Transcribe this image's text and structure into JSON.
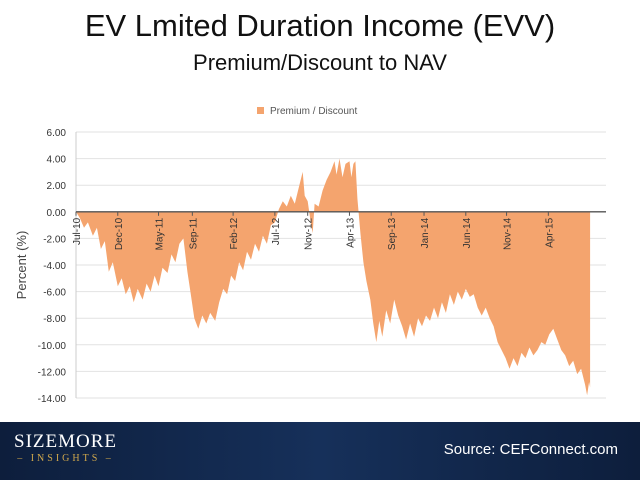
{
  "slide": {
    "title": "EV Lmited Duration Income (EVV)",
    "subtitle": "Premium/Discount to NAV",
    "logo_main": "SIZEMORE",
    "logo_sub": "– INSIGHTS –",
    "source": "Source: CEFConnect.com"
  },
  "chart_data": {
    "type": "area",
    "ylabel": "Percent (%)",
    "ylim": [
      -14,
      6
    ],
    "yticks": [
      6,
      4,
      2,
      0,
      -2,
      -4,
      -6,
      -8,
      -10,
      -12,
      -14
    ],
    "ytick_labels": [
      "6.00",
      "4.00",
      "2.00",
      "0.00",
      "-2.00",
      "-4.00",
      "-6.00",
      "-8.00",
      "-10.00",
      "-12.00",
      "-14.00"
    ],
    "xlim": [
      2010.5,
      2015.83
    ],
    "xticks": [
      {
        "label": "Jul-10",
        "x": 2010.5
      },
      {
        "label": "Dec-10",
        "x": 2010.92
      },
      {
        "label": "May-11",
        "x": 2011.33
      },
      {
        "label": "Sep-11",
        "x": 2011.67
      },
      {
        "label": "Feb-12",
        "x": 2012.08
      },
      {
        "label": "Jul-12",
        "x": 2012.5
      },
      {
        "label": "Nov-12",
        "x": 2012.83
      },
      {
        "label": "Apr-13",
        "x": 2013.25
      },
      {
        "label": "Sep-13",
        "x": 2013.67
      },
      {
        "label": "Jan-14",
        "x": 2014.0
      },
      {
        "label": "Jun-14",
        "x": 2014.42
      },
      {
        "label": "Nov-14",
        "x": 2014.83
      },
      {
        "label": "Apr-15",
        "x": 2015.25
      }
    ],
    "grid": true,
    "legend": {
      "position": "top-center"
    },
    "series": [
      {
        "name": "Premium / Discount",
        "color": "#f4a46e",
        "points": [
          [
            2010.5,
            0
          ],
          [
            2010.54,
            -0.5
          ],
          [
            2010.58,
            -1.2
          ],
          [
            2010.62,
            -0.8
          ],
          [
            2010.67,
            -1.8
          ],
          [
            2010.71,
            -1.2
          ],
          [
            2010.75,
            -2.8
          ],
          [
            2010.79,
            -2.2
          ],
          [
            2010.83,
            -4.5
          ],
          [
            2010.87,
            -3.8
          ],
          [
            2010.92,
            -5.6
          ],
          [
            2010.96,
            -5.0
          ],
          [
            2011.0,
            -6.2
          ],
          [
            2011.04,
            -5.6
          ],
          [
            2011.08,
            -6.8
          ],
          [
            2011.12,
            -5.8
          ],
          [
            2011.17,
            -6.6
          ],
          [
            2011.21,
            -5.4
          ],
          [
            2011.25,
            -6.0
          ],
          [
            2011.29,
            -4.8
          ],
          [
            2011.33,
            -5.6
          ],
          [
            2011.37,
            -4.2
          ],
          [
            2011.42,
            -4.6
          ],
          [
            2011.46,
            -3.2
          ],
          [
            2011.5,
            -3.8
          ],
          [
            2011.54,
            -2.4
          ],
          [
            2011.58,
            -2.0
          ],
          [
            2011.62,
            -4.5
          ],
          [
            2011.65,
            -6.0
          ],
          [
            2011.69,
            -8.0
          ],
          [
            2011.73,
            -8.8
          ],
          [
            2011.77,
            -7.8
          ],
          [
            2011.81,
            -8.4
          ],
          [
            2011.85,
            -7.6
          ],
          [
            2011.9,
            -8.2
          ],
          [
            2011.94,
            -6.8
          ],
          [
            2011.98,
            -5.8
          ],
          [
            2012.02,
            -6.2
          ],
          [
            2012.06,
            -4.8
          ],
          [
            2012.1,
            -5.2
          ],
          [
            2012.14,
            -3.8
          ],
          [
            2012.18,
            -4.4
          ],
          [
            2012.22,
            -3.0
          ],
          [
            2012.26,
            -3.6
          ],
          [
            2012.3,
            -2.4
          ],
          [
            2012.34,
            -3.0
          ],
          [
            2012.38,
            -1.8
          ],
          [
            2012.42,
            -2.4
          ],
          [
            2012.46,
            -1.0
          ],
          [
            2012.5,
            -0.8
          ],
          [
            2012.54,
            0.2
          ],
          [
            2012.58,
            0.8
          ],
          [
            2012.62,
            0.4
          ],
          [
            2012.66,
            1.2
          ],
          [
            2012.7,
            0.6
          ],
          [
            2012.74,
            1.8
          ],
          [
            2012.78,
            3.0
          ],
          [
            2012.8,
            1.2
          ],
          [
            2012.83,
            0.8
          ],
          [
            2012.86,
            -0.8
          ],
          [
            2012.88,
            -1.6
          ],
          [
            2012.9,
            0.6
          ],
          [
            2012.94,
            0.4
          ],
          [
            2012.98,
            1.6
          ],
          [
            2013.02,
            2.4
          ],
          [
            2013.06,
            3.0
          ],
          [
            2013.1,
            3.8
          ],
          [
            2013.12,
            2.8
          ],
          [
            2013.15,
            4.0
          ],
          [
            2013.18,
            2.6
          ],
          [
            2013.21,
            3.6
          ],
          [
            2013.25,
            3.8
          ],
          [
            2013.27,
            2.6
          ],
          [
            2013.29,
            3.6
          ],
          [
            2013.31,
            3.8
          ],
          [
            2013.33,
            1.0
          ],
          [
            2013.36,
            -1.6
          ],
          [
            2013.39,
            -3.8
          ],
          [
            2013.42,
            -5.2
          ],
          [
            2013.46,
            -6.6
          ],
          [
            2013.49,
            -8.4
          ],
          [
            2013.52,
            -9.8
          ],
          [
            2013.55,
            -8.2
          ],
          [
            2013.58,
            -9.4
          ],
          [
            2013.62,
            -7.4
          ],
          [
            2013.66,
            -8.4
          ],
          [
            2013.7,
            -6.6
          ],
          [
            2013.74,
            -7.8
          ],
          [
            2013.78,
            -8.6
          ],
          [
            2013.82,
            -9.6
          ],
          [
            2013.86,
            -8.4
          ],
          [
            2013.9,
            -9.4
          ],
          [
            2013.94,
            -8.0
          ],
          [
            2013.98,
            -8.6
          ],
          [
            2014.02,
            -7.8
          ],
          [
            2014.06,
            -8.2
          ],
          [
            2014.1,
            -7.2
          ],
          [
            2014.14,
            -8.0
          ],
          [
            2014.18,
            -6.8
          ],
          [
            2014.22,
            -7.6
          ],
          [
            2014.26,
            -6.2
          ],
          [
            2014.3,
            -7.0
          ],
          [
            2014.34,
            -6.0
          ],
          [
            2014.38,
            -6.6
          ],
          [
            2014.42,
            -5.8
          ],
          [
            2014.46,
            -6.4
          ],
          [
            2014.5,
            -6.2
          ],
          [
            2014.54,
            -7.2
          ],
          [
            2014.58,
            -7.8
          ],
          [
            2014.62,
            -7.2
          ],
          [
            2014.66,
            -8.0
          ],
          [
            2014.7,
            -8.6
          ],
          [
            2014.74,
            -9.8
          ],
          [
            2014.78,
            -10.4
          ],
          [
            2014.82,
            -11.0
          ],
          [
            2014.86,
            -11.8
          ],
          [
            2014.9,
            -11.0
          ],
          [
            2014.94,
            -11.6
          ],
          [
            2014.98,
            -10.6
          ],
          [
            2015.02,
            -11.0
          ],
          [
            2015.06,
            -10.2
          ],
          [
            2015.1,
            -10.8
          ],
          [
            2015.14,
            -10.4
          ],
          [
            2015.18,
            -9.8
          ],
          [
            2015.22,
            -10.0
          ],
          [
            2015.26,
            -9.2
          ],
          [
            2015.3,
            -8.8
          ],
          [
            2015.34,
            -9.6
          ],
          [
            2015.38,
            -10.4
          ],
          [
            2015.42,
            -10.8
          ],
          [
            2015.46,
            -11.6
          ],
          [
            2015.5,
            -11.2
          ],
          [
            2015.54,
            -12.2
          ],
          [
            2015.58,
            -11.8
          ],
          [
            2015.62,
            -13.0
          ],
          [
            2015.64,
            -13.8
          ],
          [
            2015.66,
            -12.8
          ],
          [
            2015.67,
            -13.2
          ],
          [
            2015.67,
            0
          ]
        ]
      }
    ]
  }
}
